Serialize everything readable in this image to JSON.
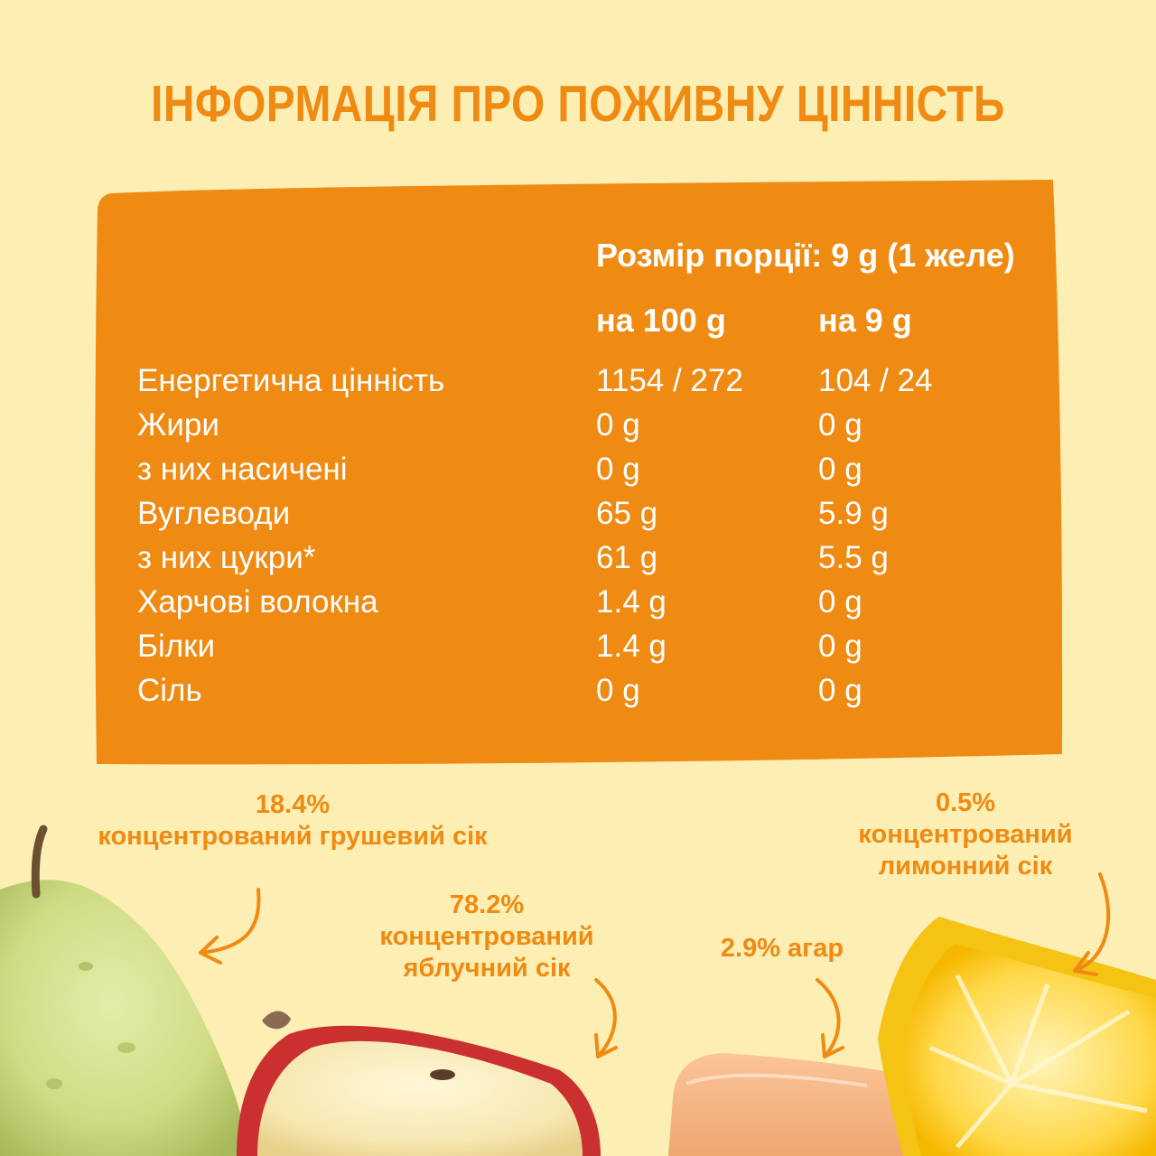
{
  "title": "ІНФОРМАЦІЯ ПРО ПОЖИВНУ ЦІННІСТЬ",
  "serving_size": "Розмір порції: 9 g (1 желе)",
  "columns": {
    "per100": "на 100 g",
    "per9": "на 9 g"
  },
  "nutrients": [
    {
      "name": "Енергетична цінність",
      "per100": "1154 / 272",
      "per9": "104 / 24"
    },
    {
      "name": "Жири",
      "per100": "0 g",
      "per9": "0 g"
    },
    {
      "name": "з них насичені",
      "per100": "0 g",
      "per9": "0 g"
    },
    {
      "name": "Вуглеводи",
      "per100": "65 g",
      "per9": "5.9 g"
    },
    {
      "name": "з них цукри*",
      "per100": "61 g",
      "per9": "5.5 g"
    },
    {
      "name": "Харчові волокна",
      "per100": "1.4 g",
      "per9": "0 g"
    },
    {
      "name": "Білки",
      "per100": "1.4 g",
      "per9": "0 g"
    },
    {
      "name": "Сіль",
      "per100": "0 g",
      "per9": "0 g"
    }
  ],
  "ingredients": {
    "pear": {
      "percent": "18.4%",
      "text": "концентрований грушевий сік"
    },
    "apple": {
      "percent": "78.2%",
      "line1": "концентрований",
      "line2": "яблучний сік"
    },
    "agar": {
      "text": "2.9% агар"
    },
    "lemon": {
      "percent": "0.5%",
      "line1": "концентрований",
      "line2": "лимонний сік"
    }
  },
  "colors": {
    "background": "#fdeeb4",
    "panel": "#ef8a12",
    "accent_text": "#ef8a12",
    "panel_text": "#ffffff"
  }
}
